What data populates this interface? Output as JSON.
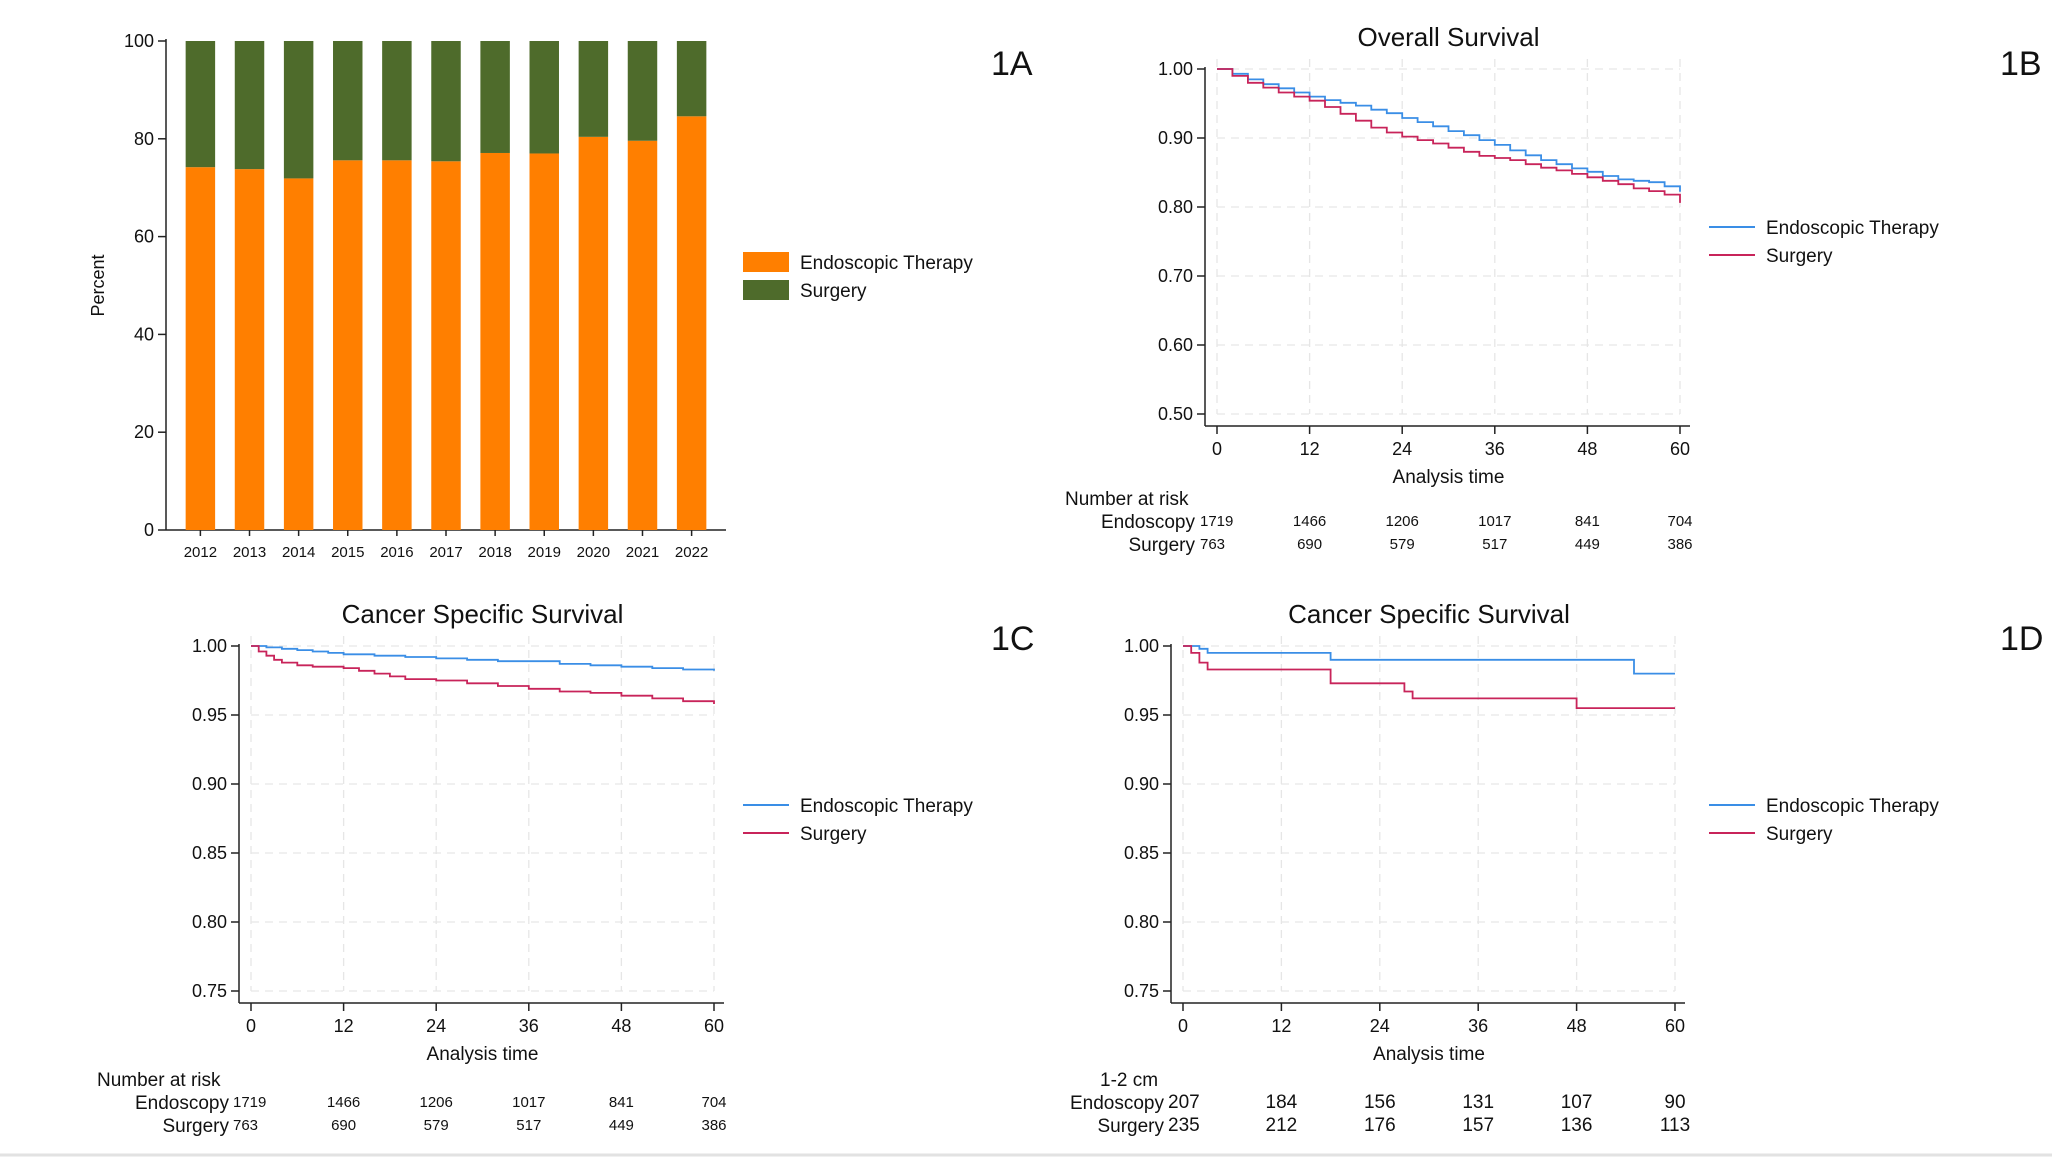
{
  "panels": {
    "a": {
      "label": "1A"
    },
    "b": {
      "label": "1B",
      "risk_title": "Number at risk",
      "row1": "Endoscopy",
      "row2": "Surgery"
    },
    "c": {
      "label": "1C",
      "risk_title": "Number at risk",
      "row1": "Endoscopy",
      "row2": "Surgery"
    },
    "d": {
      "label": "1D",
      "risk_title": "1-2 cm",
      "row1": "Endoscopy",
      "row2": "Surgery"
    }
  },
  "colors": {
    "endoscopic_bar": "#FF7F00",
    "surgery_bar": "#4E6B2B",
    "endoscopic_line": "#3A8EE6",
    "surgery_line": "#C8245A",
    "grid": "#E6E6E6",
    "axis": "#222222"
  },
  "chart_data": [
    {
      "type": "bar",
      "stacked": true,
      "ylabel": "Percent",
      "ylim": [
        0,
        100
      ],
      "yticks": [
        0,
        20,
        40,
        60,
        80,
        100
      ],
      "categories": [
        "2012",
        "2013",
        "2014",
        "2015",
        "2016",
        "2017",
        "2018",
        "2019",
        "2020",
        "2021",
        "2022"
      ],
      "series": [
        {
          "name": "Endoscopic Therapy",
          "values": [
            74.2,
            73.8,
            71.9,
            75.6,
            75.6,
            75.4,
            77.1,
            77.0,
            80.4,
            79.6,
            84.6
          ]
        },
        {
          "name": "Surgery",
          "values": [
            25.8,
            26.2,
            28.1,
            24.4,
            24.4,
            24.6,
            22.9,
            23.0,
            19.6,
            20.4,
            15.4
          ]
        }
      ],
      "legend": "right"
    },
    {
      "type": "line",
      "step": true,
      "title": "Overall Survival",
      "xlabel": "Analysis time",
      "xlim": [
        0,
        60
      ],
      "ylim": [
        0.5,
        1.0
      ],
      "xticks": [
        0,
        12,
        24,
        36,
        48,
        60
      ],
      "yticks": [
        "0.50",
        "0.60",
        "0.70",
        "0.80",
        "0.90",
        "1.00"
      ],
      "grid": true,
      "legend": "right",
      "series": [
        {
          "name": "Endoscopic Therapy",
          "x": [
            0,
            2,
            4,
            6,
            8,
            10,
            12,
            14,
            16,
            18,
            20,
            22,
            24,
            26,
            28,
            30,
            32,
            34,
            36,
            38,
            40,
            42,
            44,
            46,
            48,
            50,
            52,
            54,
            56,
            58,
            60
          ],
          "y": [
            1.0,
            0.993,
            0.985,
            0.978,
            0.972,
            0.966,
            0.96,
            0.955,
            0.951,
            0.947,
            0.941,
            0.936,
            0.929,
            0.923,
            0.917,
            0.91,
            0.904,
            0.897,
            0.89,
            0.882,
            0.875,
            0.868,
            0.862,
            0.856,
            0.851,
            0.845,
            0.84,
            0.838,
            0.836,
            0.83,
            0.822
          ]
        },
        {
          "name": "Surgery",
          "x": [
            0,
            2,
            4,
            6,
            8,
            10,
            12,
            14,
            16,
            18,
            20,
            22,
            24,
            26,
            28,
            30,
            32,
            34,
            36,
            38,
            40,
            42,
            44,
            46,
            48,
            50,
            52,
            54,
            56,
            58,
            60
          ],
          "y": [
            1.0,
            0.99,
            0.98,
            0.973,
            0.966,
            0.96,
            0.954,
            0.945,
            0.935,
            0.925,
            0.915,
            0.908,
            0.902,
            0.897,
            0.892,
            0.886,
            0.88,
            0.874,
            0.871,
            0.868,
            0.862,
            0.857,
            0.853,
            0.848,
            0.843,
            0.838,
            0.833,
            0.827,
            0.823,
            0.818,
            0.806
          ]
        }
      ],
      "risk_table": {
        "times": [
          0,
          12,
          24,
          36,
          48,
          60
        ],
        "rows": [
          [
            1719,
            1466,
            1206,
            1017,
            841,
            704
          ],
          [
            763,
            690,
            579,
            517,
            449,
            386
          ]
        ]
      }
    },
    {
      "type": "line",
      "step": true,
      "title": "Cancer Specific Survival",
      "xlabel": "Analysis time",
      "xlim": [
        0,
        60
      ],
      "ylim": [
        0.75,
        1.0
      ],
      "xticks": [
        0,
        12,
        24,
        36,
        48,
        60
      ],
      "yticks": [
        "0.75",
        "0.80",
        "0.85",
        "0.90",
        "0.95",
        "1.00"
      ],
      "grid": true,
      "legend": "right",
      "series": [
        {
          "name": "Endoscopic Therapy",
          "x": [
            0,
            2,
            4,
            6,
            8,
            10,
            12,
            16,
            20,
            24,
            28,
            32,
            36,
            40,
            44,
            48,
            52,
            56,
            60
          ],
          "y": [
            1.0,
            0.999,
            0.998,
            0.997,
            0.996,
            0.995,
            0.994,
            0.993,
            0.992,
            0.991,
            0.99,
            0.989,
            0.989,
            0.987,
            0.986,
            0.985,
            0.984,
            0.983,
            0.982
          ]
        },
        {
          "name": "Surgery",
          "x": [
            0,
            1,
            2,
            3,
            4,
            6,
            8,
            10,
            12,
            14,
            16,
            18,
            20,
            24,
            28,
            32,
            36,
            40,
            44,
            48,
            52,
            56,
            60
          ],
          "y": [
            1.0,
            0.996,
            0.993,
            0.99,
            0.988,
            0.986,
            0.985,
            0.985,
            0.984,
            0.982,
            0.98,
            0.978,
            0.976,
            0.975,
            0.973,
            0.971,
            0.969,
            0.967,
            0.966,
            0.964,
            0.962,
            0.96,
            0.958
          ]
        }
      ],
      "risk_table": {
        "times": [
          0,
          12,
          24,
          36,
          48,
          60
        ],
        "rows": [
          [
            1719,
            1466,
            1206,
            1017,
            841,
            704
          ],
          [
            763,
            690,
            579,
            517,
            449,
            386
          ]
        ]
      }
    },
    {
      "type": "line",
      "step": true,
      "title": "Cancer Specific Survival",
      "xlabel": "Analysis time",
      "xlim": [
        0,
        60
      ],
      "ylim": [
        0.75,
        1.0
      ],
      "xticks": [
        0,
        12,
        24,
        36,
        48,
        60
      ],
      "yticks": [
        "0.75",
        "0.80",
        "0.85",
        "0.90",
        "0.95",
        "1.00"
      ],
      "grid": true,
      "legend": "right",
      "series": [
        {
          "name": "Endoscopic Therapy",
          "x": [
            0,
            1,
            2,
            3,
            18,
            55,
            60
          ],
          "y": [
            1.0,
            1.0,
            0.998,
            0.995,
            0.99,
            0.98,
            0.98
          ]
        },
        {
          "name": "Surgery",
          "x": [
            0,
            1,
            2,
            3,
            18,
            27,
            28,
            48,
            60
          ],
          "y": [
            1.0,
            0.995,
            0.988,
            0.983,
            0.973,
            0.967,
            0.962,
            0.955,
            0.955
          ]
        }
      ],
      "risk_table": {
        "times": [
          0,
          12,
          24,
          36,
          48,
          60
        ],
        "rows": [
          [
            207,
            184,
            156,
            131,
            107,
            90
          ],
          [
            235,
            212,
            176,
            157,
            136,
            113
          ]
        ]
      }
    }
  ]
}
